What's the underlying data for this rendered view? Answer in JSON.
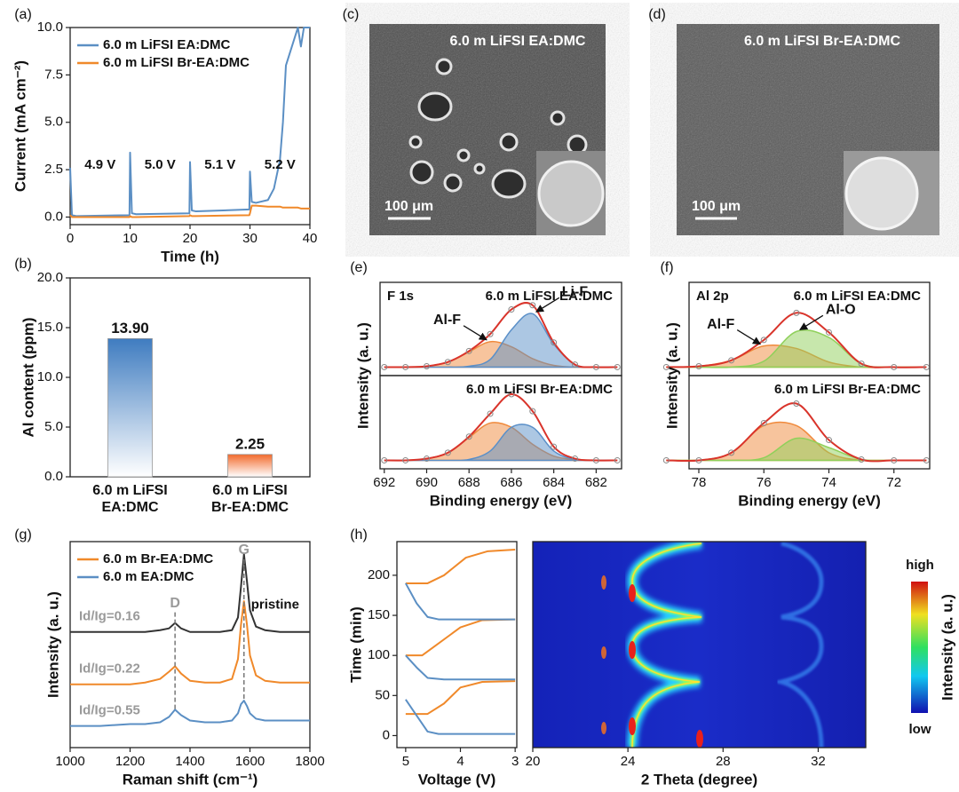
{
  "chart_data": [
    {
      "type": "line",
      "panel_label": "(a)",
      "x_label": "Time (h)",
      "y_label": "Current (mA cm⁻²)",
      "x": [
        0,
        0.3,
        1,
        9.9,
        10,
        10.3,
        11,
        19.9,
        20,
        20.3,
        21,
        29.9,
        30,
        30.3,
        31,
        33,
        34,
        35,
        35.5,
        36,
        37,
        38,
        38.5,
        39,
        40
      ],
      "xlim": [
        0,
        40
      ],
      "xticks": [
        0,
        10,
        20,
        30,
        40
      ],
      "ylim": [
        -0.4,
        10
      ],
      "yticks": [
        {
          "value": 0,
          "label": "0.0"
        },
        2.5,
        {
          "value": 5,
          "label": "5.0"
        },
        7.5,
        {
          "value": 10,
          "label": "10.0"
        }
      ],
      "legend": "upper left",
      "series": [
        {
          "name": "6.0 m LiFSI EA:DMC",
          "color": "#5b8fc4",
          "values": [
            2.6,
            0.1,
            0.05,
            0.1,
            3.4,
            0.2,
            0.15,
            0.2,
            2.9,
            0.35,
            0.3,
            0.4,
            2.4,
            0.8,
            0.75,
            0.9,
            1.5,
            3,
            5,
            8,
            9,
            10,
            9,
            10,
            10
          ]
        },
        {
          "name": "6.0 m LiFSI Br-EA:DMC",
          "color": "#f0892a",
          "values": [
            0.1,
            0,
            0,
            0,
            0.05,
            0,
            0,
            0.05,
            0.1,
            0.05,
            0.05,
            0.1,
            0.2,
            0.6,
            0.6,
            0.55,
            0.55,
            0.55,
            0.5,
            0.5,
            0.5,
            0.5,
            0.45,
            0.45,
            0.45
          ]
        }
      ],
      "annotations": [
        "4.9 V",
        "5.0 V",
        "5.1 V",
        "5.2 V"
      ]
    },
    {
      "type": "bar",
      "panel_label": "(b)",
      "y_label": "Al content (ppm)",
      "categories": [
        "6.0 m LiFSI\nEA:DMC",
        "6.0 m LiFSI\nBr-EA:DMC"
      ],
      "values": [
        13.9,
        2.25
      ],
      "value_labels": [
        "13.90",
        "2.25"
      ],
      "colors": [
        "#3f7cc0",
        "#f26a2c"
      ],
      "ylim": [
        0,
        20
      ],
      "yticks": [
        {
          "value": 0,
          "label": "0.0"
        },
        {
          "value": 5,
          "label": "5.0"
        },
        {
          "value": 10,
          "label": "10.0"
        },
        {
          "value": 15,
          "label": "15.0"
        },
        {
          "value": 20,
          "label": "20.0"
        }
      ]
    },
    {
      "type": "xps",
      "panel_label": "(e)",
      "region": "F 1s",
      "x_label": "Binding energy (eV)",
      "y_label": "Intensity (a. u.)",
      "x": [
        692,
        691,
        690,
        689,
        688,
        687,
        686,
        685,
        684,
        683,
        682,
        681
      ],
      "xlim": [
        692.2,
        680.8
      ],
      "xticks": [
        692,
        690,
        688,
        686,
        684,
        682
      ],
      "ylim": [
        -0.1,
        1
      ],
      "subplots": [
        {
          "title": "6.0 m LiFSI EA:DMC",
          "labels": [
            "Al-F",
            "Li-F"
          ],
          "series": [
            {
              "style": "area",
              "color": "#f08a3c",
              "values": [
                0,
                0,
                0.01,
                0.06,
                0.18,
                0.3,
                0.24,
                0.1,
                0.02,
                0,
                0,
                0
              ]
            },
            {
              "style": "area",
              "color": "#5a8fc8",
              "values": [
                0,
                0,
                0,
                0,
                0.01,
                0.09,
                0.44,
                0.63,
                0.27,
                0.03,
                0,
                0
              ]
            },
            {
              "style": "line",
              "color": "#d9342b",
              "values": [
                0,
                0,
                0.01,
                0.06,
                0.19,
                0.39,
                0.68,
                0.73,
                0.29,
                0.03,
                0,
                0
              ]
            }
          ]
        },
        {
          "title": "6.0 m LiFSI Br-EA:DMC",
          "series": [
            {
              "style": "area",
              "color": "#f08a3c",
              "values": [
                0,
                0,
                0.02,
                0.09,
                0.27,
                0.44,
                0.39,
                0.19,
                0.05,
                0.01,
                0,
                0
              ]
            },
            {
              "style": "area",
              "color": "#5a8fc8",
              "values": [
                0,
                0,
                0,
                0,
                0.01,
                0.11,
                0.39,
                0.39,
                0.11,
                0.01,
                0,
                0
              ]
            },
            {
              "style": "line",
              "color": "#d9342b",
              "values": [
                0,
                0,
                0.02,
                0.09,
                0.28,
                0.55,
                0.78,
                0.58,
                0.16,
                0.02,
                0,
                0
              ]
            }
          ]
        }
      ]
    },
    {
      "type": "xps",
      "panel_label": "(f)",
      "region": "Al 2p",
      "x_label": "Binding energy (eV)",
      "y_label": "Intensity (a. u.)",
      "x": [
        79,
        78,
        77,
        76,
        75,
        74,
        73,
        72,
        71
      ],
      "xlim": [
        78.3,
        70.9
      ],
      "xticks": [
        78,
        76,
        74,
        72
      ],
      "ylim": [
        -0.1,
        1
      ],
      "subplots": [
        {
          "title": "6.0 m LiFSI EA:DMC",
          "labels": [
            "Al-F",
            "Al-O"
          ],
          "series": [
            {
              "style": "area",
              "color": "#f08a3c",
              "values": [
                0,
                0.01,
                0.08,
                0.25,
                0.22,
                0.06,
                0,
                0,
                0
              ]
            },
            {
              "style": "area",
              "color": "#8fd05a",
              "values": [
                0,
                0,
                0,
                0.07,
                0.42,
                0.35,
                0.04,
                0,
                0
              ]
            },
            {
              "style": "line",
              "color": "#d9342b",
              "values": [
                0,
                0.01,
                0.08,
                0.32,
                0.64,
                0.41,
                0.04,
                0,
                0
              ]
            }
          ]
        },
        {
          "title": "6.0 m LiFSI Br-EA:DMC",
          "series": [
            {
              "style": "area",
              "color": "#f08a3c",
              "values": [
                0,
                0,
                0.09,
                0.41,
                0.41,
                0.09,
                0,
                0,
                0
              ]
            },
            {
              "style": "area",
              "color": "#8fd05a",
              "values": [
                0,
                0,
                0,
                0.03,
                0.26,
                0.15,
                0.01,
                0,
                0
              ]
            },
            {
              "style": "line",
              "color": "#d9342b",
              "values": [
                0,
                0,
                0.09,
                0.44,
                0.67,
                0.24,
                0.01,
                0,
                0
              ]
            }
          ]
        }
      ]
    },
    {
      "type": "line",
      "panel_label": "(g)",
      "x_label": "Raman shift (cm⁻¹)",
      "y_label": "Intensity (a. u.)",
      "x": [
        1000,
        1100,
        1200,
        1250,
        1300,
        1330,
        1350,
        1370,
        1400,
        1450,
        1500,
        1540,
        1560,
        1570,
        1580,
        1590,
        1600,
        1620,
        1650,
        1700,
        1800
      ],
      "xlim": [
        1000,
        1800
      ],
      "xticks": [
        1000,
        1200,
        1400,
        1600,
        1800
      ],
      "ylim": [
        0.06,
        1.2
      ],
      "legend": "upper left",
      "series": [
        {
          "name": "6.0 m Br-EA:DMC",
          "color": "#f0892a",
          "label": "Id/Ig=0.22",
          "values": [
            0.41,
            0.41,
            0.41,
            0.42,
            0.44,
            0.48,
            0.51,
            0.47,
            0.43,
            0.42,
            0.42,
            0.44,
            0.55,
            0.74,
            0.87,
            0.74,
            0.57,
            0.46,
            0.43,
            0.42,
            0.42
          ]
        },
        {
          "name": "6.0 m EA:DMC",
          "color": "#5b8fc4",
          "label": "Id/Ig=0.55",
          "values": [
            0.18,
            0.18,
            0.19,
            0.19,
            0.2,
            0.23,
            0.27,
            0.24,
            0.21,
            0.2,
            0.2,
            0.21,
            0.25,
            0.3,
            0.32,
            0.29,
            0.25,
            0.22,
            0.21,
            0.21,
            0.21
          ]
        },
        {
          "name": "pristine",
          "color": "#333333",
          "label": "Id/Ig=0.16",
          "in_legend": false,
          "values": [
            0.7,
            0.7,
            0.7,
            0.7,
            0.71,
            0.72,
            0.75,
            0.72,
            0.7,
            0.7,
            0.7,
            0.71,
            0.78,
            0.95,
            1.13,
            0.98,
            0.82,
            0.73,
            0.71,
            0.7,
            0.7
          ]
        }
      ],
      "peak_labels": [
        "D",
        "G"
      ]
    },
    {
      "type": "line",
      "panel_label": "(h)",
      "x_label": "Voltage (V)",
      "y_label": "Time (min)",
      "xlim": [
        5.16,
        2.97
      ],
      "xticks": [
        5,
        4,
        3
      ],
      "ylim": [
        -15,
        242
      ],
      "yticks": [
        0,
        50,
        100,
        150,
        200
      ],
      "series": [
        {
          "color": "#f0892a",
          "x": [
            5.0,
            4.6,
            4.3,
            4.0,
            3.6,
            3.0,
            null,
            5.0,
            4.7,
            4.5,
            4.0,
            3.6,
            3.0,
            null,
            5.0,
            4.6,
            4.3,
            3.9,
            3.5,
            3.0
          ],
          "values": [
            27,
            27,
            40,
            60,
            67,
            68,
            null,
            100,
            100,
            110,
            135,
            144,
            145,
            null,
            190,
            190,
            200,
            222,
            230,
            232
          ]
        },
        {
          "color": "#5b8fc4",
          "x": [
            5.0,
            4.8,
            4.6,
            4.4,
            3.0,
            null,
            5.0,
            4.8,
            4.6,
            4.3,
            3.0,
            null,
            5.0,
            4.8,
            4.6,
            4.4,
            3.0
          ],
          "values": [
            45,
            25,
            5,
            2,
            2,
            null,
            100,
            85,
            72,
            70,
            70,
            null,
            190,
            165,
            148,
            145,
            145
          ]
        }
      ]
    },
    {
      "type": "heatmap",
      "x_label": "2 Theta (degree)",
      "xlim": [
        20,
        34
      ],
      "xticks": [
        20,
        24,
        28,
        32
      ],
      "colorbar_label": "Intensity (a. u.)",
      "colorbar_ticks": [
        "high",
        "low"
      ]
    }
  ],
  "micrographs": [
    {
      "panel_label": "(c)",
      "title": "6.0 m LiFSI EA:DMC",
      "scale_bar": "100 μm"
    },
    {
      "panel_label": "(d)",
      "title": "6.0 m LiFSI Br-EA:DMC",
      "scale_bar": "100 μm"
    }
  ]
}
